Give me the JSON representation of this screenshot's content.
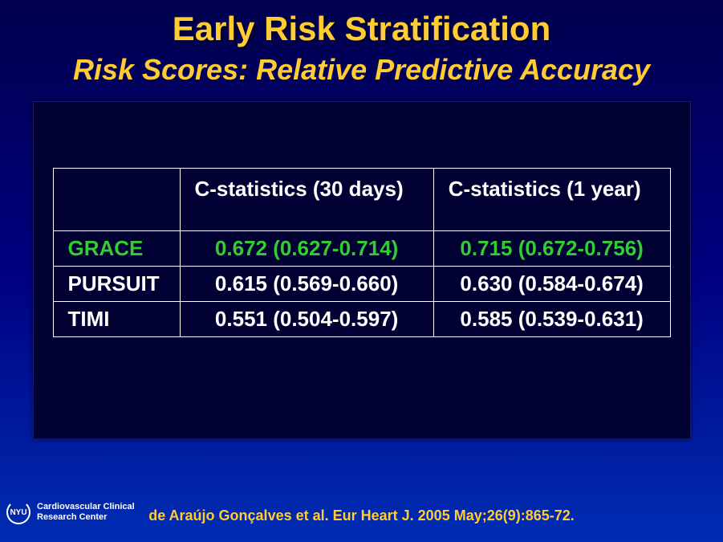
{
  "title": "Early Risk Stratification",
  "subtitle": "Risk Scores: Relative Predictive Accuracy",
  "table": {
    "columns": [
      "",
      "C-statistics (30 days)",
      "C-statistics (1  year)"
    ],
    "rows": [
      {
        "label": "GRACE",
        "c30": "0.672 (0.627-0.714)",
        "c1y": "0.715 (0.672-0.756)",
        "highlight": true
      },
      {
        "label": "PURSUIT",
        "c30": "0.615 (0.569-0.660)",
        "c1y": "0.630 (0.584-0.674)",
        "highlight": false
      },
      {
        "label": "TIMI",
        "c30": "0.551 (0.504-0.597)",
        "c1y": "0.585 (0.539-0.631)",
        "highlight": false
      }
    ],
    "header_color": "#ffffff",
    "cell_color": "#ffffff",
    "highlight_color": "#33cc33",
    "border_color": "#ffffff",
    "panel_bg": "#000033",
    "font_size": 26
  },
  "citation": "de Araújo Gonçalves et al. Eur Heart J. 2005 May;26(9):865-72.",
  "footer": {
    "badge": "NYU",
    "line1": "Cardiovascular Clinical",
    "line2": "Research Center"
  },
  "colors": {
    "title": "#ffcc33",
    "subtitle": "#ffcc33",
    "bg_top": "#00004d",
    "bg_bottom": "#002db3"
  }
}
